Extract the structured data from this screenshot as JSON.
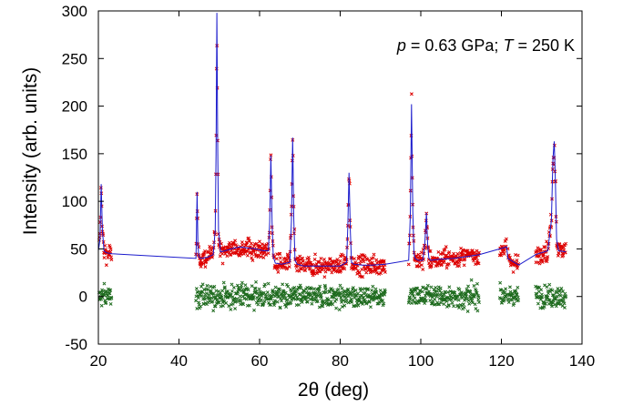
{
  "chart_data": {
    "type": "scatter",
    "title": "",
    "annotation": {
      "p_symbol": "p",
      "p_value": " = 0.63 GPa;  ",
      "t_symbol": "T",
      "t_value": " = 250 K"
    },
    "xlabel": "2θ  (deg)",
    "ylabel": "Intensity (arb. units)",
    "xlim": [
      20,
      140
    ],
    "ylim": [
      -50,
      300
    ],
    "xticks": [
      "20",
      "40",
      "60",
      "80",
      "100",
      "120",
      "140"
    ],
    "yticks": [
      "-50",
      "0",
      "50",
      "100",
      "150",
      "200",
      "250",
      "300"
    ],
    "grid": false,
    "legend": "none",
    "colors": {
      "observed": "#dd0000",
      "calculated": "#1a1acc",
      "difference": "#1e6b1e"
    },
    "regions": [
      [
        20.2,
        23.3
      ],
      [
        44.2,
        55.5
      ],
      [
        55.5,
        61.8
      ],
      [
        62.0,
        91.2
      ],
      [
        97.0,
        114.5
      ],
      [
        119.6,
        121.3
      ],
      [
        121.6,
        124.3
      ],
      [
        128.5,
        136.0
      ]
    ],
    "series": [
      {
        "style": "line",
        "x": [
          20.0,
          20.4,
          20.7,
          21.0,
          21.4,
          22.0,
          23.3,
          44.2,
          44.3,
          44.5,
          44.7,
          44.9,
          45.3,
          47.0,
          48.5,
          49.0,
          49.2,
          49.4,
          49.6,
          49.8,
          50.3,
          51.5,
          53.0,
          55.0,
          57.0,
          59.0,
          61.0,
          62.2,
          62.5,
          62.8,
          63.1,
          63.4,
          63.9,
          65.5,
          67.5,
          67.9,
          68.2,
          68.5,
          68.8,
          69.3,
          71.0,
          74.0,
          77.0,
          80.0,
          81.6,
          81.9,
          82.2,
          82.5,
          82.8,
          83.3,
          85.5,
          88.0,
          91.2,
          97.0,
          97.4,
          97.7,
          98.0,
          98.3,
          98.6,
          99.3,
          100.5,
          101.0,
          101.4,
          101.7,
          102.0,
          102.5,
          104.5,
          108.0,
          111.5,
          114.5,
          119.6,
          121.3,
          121.6,
          124.3,
          128.5,
          131.5,
          132.4,
          132.8,
          133.1,
          133.4,
          133.7,
          134.2,
          136.0
        ],
        "y": [
          48,
          60,
          118,
          70,
          48,
          46,
          45,
          40,
          55,
          110,
          55,
          42,
          40,
          41,
          44,
          70,
          150,
          298,
          160,
          70,
          47,
          48,
          50,
          52,
          51,
          50,
          48,
          48,
          78,
          148,
          78,
          42,
          35,
          34,
          36,
          80,
          167,
          80,
          38,
          34,
          32,
          32,
          32,
          32,
          36,
          75,
          130,
          70,
          36,
          34,
          33,
          33,
          34,
          38,
          85,
          202,
          90,
          45,
          40,
          38,
          38,
          55,
          88,
          55,
          40,
          38,
          39,
          40,
          42,
          44,
          50,
          52,
          40,
          33,
          44,
          48,
          80,
          145,
          163,
          120,
          60,
          48,
          47
        ]
      }
    ]
  }
}
